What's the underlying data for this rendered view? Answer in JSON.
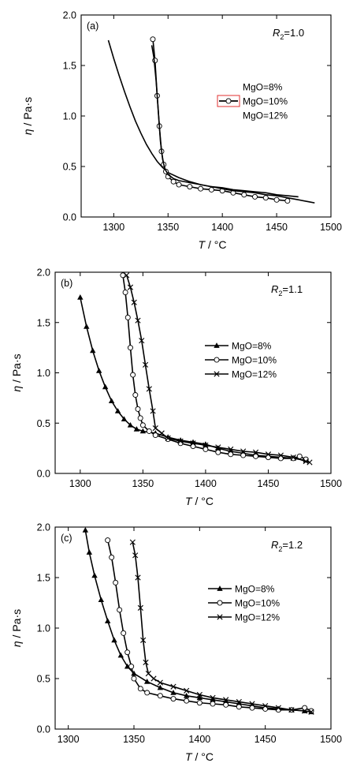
{
  "chart_data": [
    {
      "type": "line",
      "panel_label": "(a)",
      "annotation": {
        "symbol": "R",
        "subscript": "2",
        "value": "=1.0"
      },
      "ylabel": {
        "symbol": "η",
        "unit": "/ Pa·s"
      },
      "xlabel": {
        "symbol": "T",
        "unit": "/ °C"
      },
      "xlim": [
        1270,
        1500
      ],
      "ylim": [
        0,
        2
      ],
      "xticks": [
        1300,
        1350,
        1400,
        1450,
        1500
      ],
      "yticks": [
        0.0,
        0.5,
        1.0,
        1.5,
        2.0
      ],
      "legend_position": "right-middle",
      "series": [
        {
          "name": "MgO=8%",
          "marker": "none",
          "x": [
            1295,
            1300,
            1305,
            1310,
            1315,
            1320,
            1325,
            1330,
            1335,
            1340,
            1345,
            1350,
            1360,
            1370,
            1380,
            1390,
            1400,
            1410,
            1420,
            1430,
            1440,
            1450,
            1460,
            1470
          ],
          "y": [
            1.75,
            1.57,
            1.4,
            1.24,
            1.09,
            0.95,
            0.83,
            0.72,
            0.63,
            0.55,
            0.49,
            0.44,
            0.39,
            0.35,
            0.32,
            0.3,
            0.29,
            0.27,
            0.26,
            0.25,
            0.24,
            0.22,
            0.21,
            0.2
          ]
        },
        {
          "name": "MgO=10%",
          "marker": "circle-open",
          "x": [
            1336,
            1338,
            1340,
            1342,
            1344,
            1346,
            1348,
            1350,
            1355,
            1360,
            1370,
            1380,
            1390,
            1400,
            1410,
            1420,
            1430,
            1440,
            1450,
            1460
          ],
          "y": [
            1.76,
            1.55,
            1.2,
            0.9,
            0.65,
            0.52,
            0.45,
            0.4,
            0.35,
            0.32,
            0.3,
            0.28,
            0.27,
            0.26,
            0.24,
            0.22,
            0.2,
            0.19,
            0.17,
            0.16
          ]
        },
        {
          "name": "MgO=12%",
          "marker": "none",
          "x": [
            1335,
            1337,
            1339,
            1341,
            1343,
            1345,
            1347,
            1350,
            1355,
            1360,
            1370,
            1380,
            1390,
            1400,
            1410,
            1420,
            1430,
            1440,
            1450,
            1460,
            1470,
            1480,
            1485
          ],
          "y": [
            1.7,
            1.58,
            1.35,
            1.05,
            0.75,
            0.57,
            0.48,
            0.42,
            0.38,
            0.36,
            0.34,
            0.32,
            0.3,
            0.28,
            0.26,
            0.25,
            0.24,
            0.22,
            0.21,
            0.19,
            0.17,
            0.15,
            0.14
          ]
        }
      ]
    },
    {
      "type": "line",
      "panel_label": "(b)",
      "annotation": {
        "symbol": "R",
        "subscript": "2",
        "value": "=1.1"
      },
      "ylabel": {
        "symbol": "η",
        "unit": "/ Pa·s"
      },
      "xlabel": {
        "symbol": "T",
        "unit": "/ °C"
      },
      "xlim": [
        1280,
        1500
      ],
      "ylim": [
        0,
        2
      ],
      "xticks": [
        1300,
        1350,
        1400,
        1450,
        1500
      ],
      "yticks": [
        0.0,
        0.5,
        1.0,
        1.5,
        2.0
      ],
      "legend_position": "right-middle",
      "series": [
        {
          "name": "MgO=8%",
          "marker": "triangle-filled",
          "x": [
            1300,
            1305,
            1310,
            1315,
            1320,
            1325,
            1330,
            1335,
            1340,
            1345,
            1350,
            1360,
            1370,
            1380,
            1390,
            1400,
            1410,
            1420,
            1430,
            1440,
            1450,
            1460,
            1470,
            1480
          ],
          "y": [
            1.75,
            1.46,
            1.22,
            1.02,
            0.86,
            0.72,
            0.62,
            0.54,
            0.48,
            0.44,
            0.42,
            0.4,
            0.36,
            0.33,
            0.31,
            0.29,
            0.25,
            0.22,
            0.2,
            0.18,
            0.17,
            0.16,
            0.15,
            0.13
          ]
        },
        {
          "name": "MgO=10%",
          "marker": "circle-open",
          "x": [
            1334,
            1336,
            1338,
            1340,
            1342,
            1344,
            1346,
            1348,
            1350,
            1355,
            1360,
            1370,
            1380,
            1390,
            1400,
            1410,
            1420,
            1430,
            1440,
            1450,
            1460,
            1470,
            1475,
            1480
          ],
          "y": [
            1.97,
            1.8,
            1.55,
            1.25,
            0.98,
            0.78,
            0.64,
            0.55,
            0.48,
            0.42,
            0.38,
            0.34,
            0.3,
            0.27,
            0.24,
            0.21,
            0.19,
            0.18,
            0.17,
            0.16,
            0.15,
            0.15,
            0.17,
            0.14
          ]
        },
        {
          "name": "MgO=12%",
          "marker": "x",
          "x": [
            1337,
            1340,
            1343,
            1346,
            1349,
            1352,
            1355,
            1358,
            1360,
            1365,
            1370,
            1380,
            1390,
            1400,
            1410,
            1420,
            1430,
            1440,
            1450,
            1460,
            1470,
            1480,
            1483
          ],
          "y": [
            1.97,
            1.85,
            1.7,
            1.52,
            1.32,
            1.08,
            0.84,
            0.62,
            0.45,
            0.4,
            0.35,
            0.32,
            0.3,
            0.28,
            0.26,
            0.24,
            0.22,
            0.21,
            0.19,
            0.18,
            0.16,
            0.12,
            0.11
          ]
        }
      ]
    },
    {
      "type": "line",
      "panel_label": "(c)",
      "annotation": {
        "symbol": "R",
        "subscript": "2",
        "value": "=1.2"
      },
      "ylabel": {
        "symbol": "η",
        "unit": "/ Pa·s"
      },
      "xlabel": {
        "symbol": "T",
        "unit": "/ °C"
      },
      "xlim": [
        1290,
        1500
      ],
      "ylim": [
        0,
        2
      ],
      "xticks": [
        1300,
        1350,
        1400,
        1450,
        1500
      ],
      "yticks": [
        0.0,
        0.5,
        1.0,
        1.5,
        2.0
      ],
      "legend_position": "right-middle",
      "series": [
        {
          "name": "MgO=8%",
          "marker": "triangle-filled",
          "x": [
            1313,
            1316,
            1320,
            1325,
            1330,
            1335,
            1340,
            1345,
            1350,
            1360,
            1370,
            1380,
            1390,
            1400,
            1410,
            1420,
            1430,
            1440,
            1450,
            1460,
            1470,
            1480,
            1485
          ],
          "y": [
            1.97,
            1.75,
            1.52,
            1.28,
            1.07,
            0.88,
            0.73,
            0.62,
            0.55,
            0.47,
            0.41,
            0.36,
            0.33,
            0.31,
            0.29,
            0.27,
            0.25,
            0.23,
            0.21,
            0.2,
            0.19,
            0.18,
            0.17
          ]
        },
        {
          "name": "MgO=10%",
          "marker": "circle-open",
          "x": [
            1330,
            1333,
            1336,
            1339,
            1342,
            1345,
            1348,
            1350,
            1355,
            1360,
            1370,
            1380,
            1390,
            1400,
            1410,
            1420,
            1430,
            1440,
            1450,
            1460,
            1470,
            1480,
            1485
          ],
          "y": [
            1.87,
            1.7,
            1.45,
            1.18,
            0.95,
            0.76,
            0.62,
            0.5,
            0.4,
            0.36,
            0.33,
            0.3,
            0.28,
            0.26,
            0.25,
            0.24,
            0.22,
            0.21,
            0.2,
            0.19,
            0.19,
            0.21,
            0.18
          ]
        },
        {
          "name": "MgO=12%",
          "marker": "x",
          "x": [
            1349,
            1351,
            1353,
            1355,
            1357,
            1359,
            1361,
            1365,
            1370,
            1380,
            1390,
            1400,
            1410,
            1420,
            1430,
            1440,
            1450,
            1460,
            1470,
            1480,
            1485
          ],
          "y": [
            1.85,
            1.72,
            1.5,
            1.2,
            0.88,
            0.66,
            0.55,
            0.5,
            0.46,
            0.42,
            0.38,
            0.34,
            0.31,
            0.29,
            0.27,
            0.25,
            0.23,
            0.21,
            0.19,
            0.18,
            0.17
          ]
        }
      ]
    }
  ]
}
